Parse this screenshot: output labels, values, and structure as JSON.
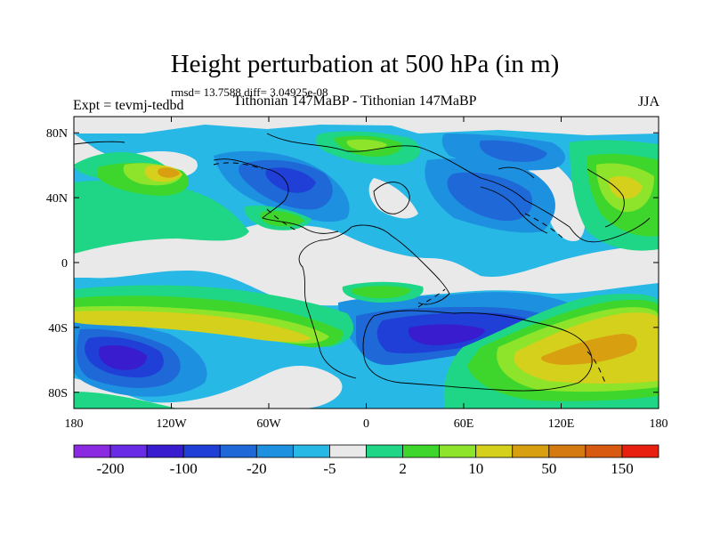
{
  "title": "Height perturbation at 500 hPa (in m)",
  "stats": "rmsd= 13.7588 diff= 3.04925e-08",
  "left_label": "Expt = tevmj-tedbd",
  "center_label": "Tithonian 147MaBP - Tithonian 147MaBP",
  "right_label": "JJA",
  "map": {
    "projection": "cylindrical-equidistant",
    "lon_range": [
      -180,
      180
    ],
    "lat_range": [
      -90,
      90
    ],
    "x_ticks": [
      {
        "lon": -180,
        "label": "180"
      },
      {
        "lon": -120,
        "label": "120W"
      },
      {
        "lon": -60,
        "label": "60W"
      },
      {
        "lon": 0,
        "label": "0"
      },
      {
        "lon": 60,
        "label": "60E"
      },
      {
        "lon": 120,
        "label": "120E"
      },
      {
        "lon": 180,
        "label": "180"
      }
    ],
    "y_ticks": [
      {
        "lat": 80,
        "label": "80N"
      },
      {
        "lat": 40,
        "label": "40N"
      },
      {
        "lat": 0,
        "label": "0"
      },
      {
        "lat": -40,
        "label": "40S"
      },
      {
        "lat": -80,
        "label": "80S"
      }
    ]
  },
  "colorbar": {
    "colors": [
      "#8a2be2",
      "#6a2be6",
      "#3a1ccf",
      "#1f3fd6",
      "#1e68d8",
      "#1e90e0",
      "#27b8e6",
      "#e9e9e9",
      "#1ed685",
      "#3ed62c",
      "#8ee42a",
      "#d4d01c",
      "#d8a010",
      "#d47a10",
      "#d85a10",
      "#e82010"
    ],
    "labels": [
      {
        "index": 1,
        "text": "-200"
      },
      {
        "index": 3,
        "text": "-100"
      },
      {
        "index": 5,
        "text": "-20"
      },
      {
        "index": 7,
        "text": "-5"
      },
      {
        "index": 9,
        "text": "2"
      },
      {
        "index": 11,
        "text": "10"
      },
      {
        "index": 13,
        "text": "50"
      },
      {
        "index": 15,
        "text": "150"
      }
    ]
  },
  "field_colors": {
    "gray": "#e9e9e9",
    "light_blue": "#27b8e6",
    "mid_blue": "#1e90e0",
    "blue": "#1e68d8",
    "dark_blue": "#1f3fd6",
    "deep_blue": "#3a1ccf",
    "teal_green": "#1ed685",
    "green": "#3ed62c",
    "yellow_green": "#8ee42a",
    "olive": "#d4d01c",
    "orange": "#d8a010"
  }
}
